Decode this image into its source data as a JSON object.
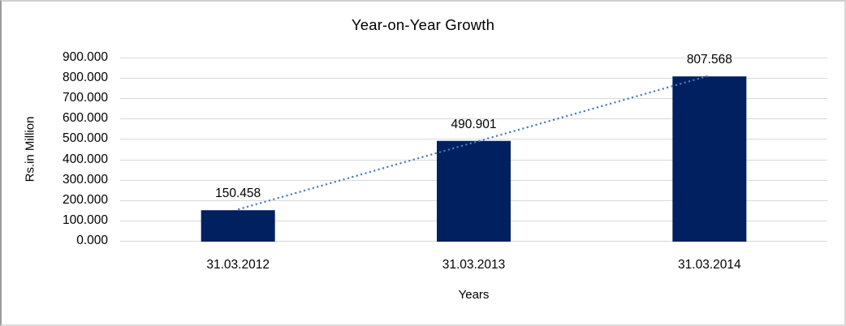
{
  "chart_data": {
    "type": "bar",
    "title": "Year-on-Year Growth",
    "xlabel": "Years",
    "ylabel": "Rs.in Million",
    "categories": [
      "31.03.2012",
      "31.03.2013",
      "31.03.2014"
    ],
    "values": [
      150.458,
      490.901,
      807.568
    ],
    "value_labels": [
      "150.458",
      "490.901",
      "807.568"
    ],
    "ylim": [
      0,
      900
    ],
    "ytick_step": 100,
    "ytick_labels": [
      "0.000",
      "100.000",
      "200.000",
      "300.000",
      "400.000",
      "500.000",
      "600.000",
      "700.000",
      "800.000",
      "900.000"
    ],
    "grid": true,
    "legend": "none",
    "trendline": {
      "type": "linear",
      "style": "dotted"
    },
    "colors": {
      "bar": "#002060",
      "trendline": "#4a7ebb",
      "gridline": "#d9d9d9",
      "text": "#000000",
      "background": "#ffffff",
      "frame_border": "#bfbfbf"
    }
  }
}
